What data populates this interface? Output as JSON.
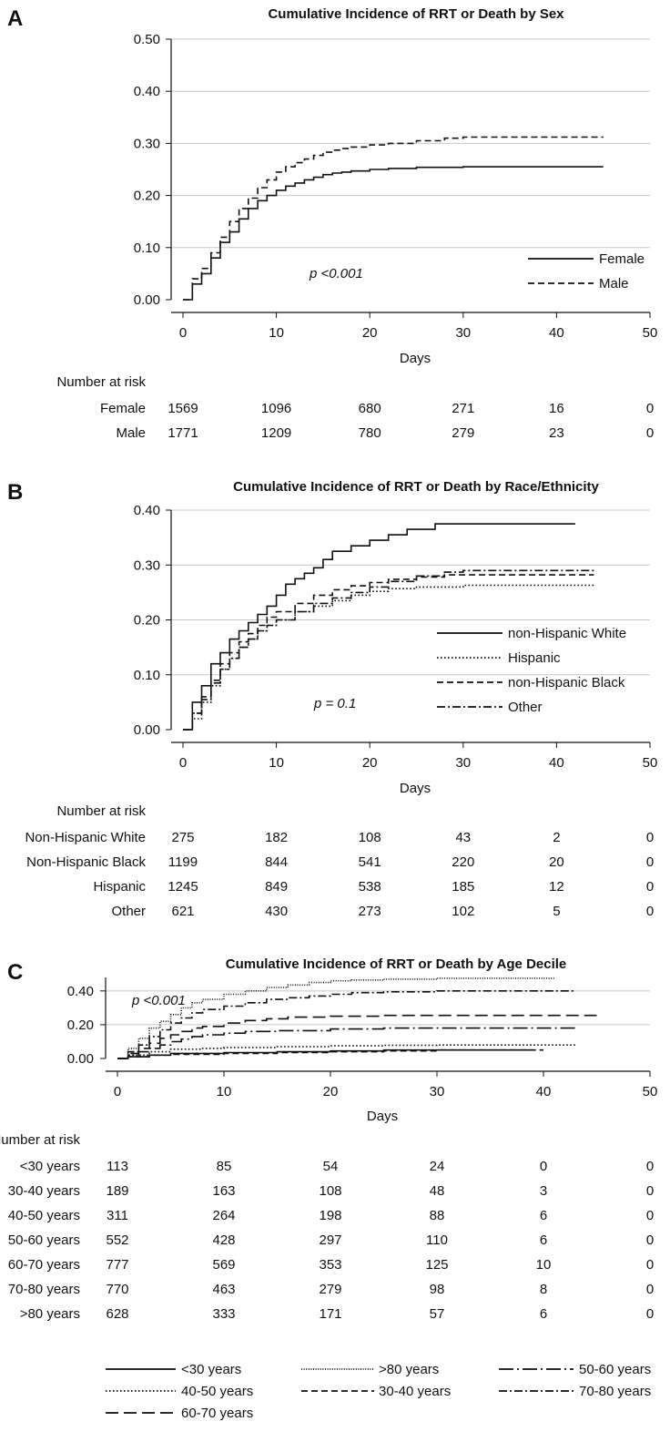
{
  "chart_data": [
    {
      "panel_letter": "A",
      "type": "line",
      "step": true,
      "title": "Cumulative Incidence of RRT or Death by Sex",
      "xlabel": "Days",
      "ylabel": "",
      "xlim": [
        0,
        50
      ],
      "ylim": [
        0,
        0.5
      ],
      "x_ticks": [
        0,
        10,
        20,
        30,
        40,
        50
      ],
      "y_ticks": [
        "0.00",
        "0.10",
        "0.20",
        "0.30",
        "0.40",
        "0.50"
      ],
      "grid": "horizontal",
      "p_value": "p <0.001",
      "legend_position": "bottom-right",
      "series": [
        {
          "name": "Female",
          "dash": "solid",
          "x": [
            1,
            2,
            3,
            4,
            5,
            6,
            7,
            8,
            9,
            10,
            11,
            12,
            13,
            14,
            15,
            16,
            17,
            18,
            20,
            22,
            25,
            30,
            45
          ],
          "y": [
            0.03,
            0.05,
            0.08,
            0.11,
            0.13,
            0.155,
            0.175,
            0.19,
            0.2,
            0.21,
            0.218,
            0.224,
            0.23,
            0.235,
            0.24,
            0.243,
            0.245,
            0.247,
            0.25,
            0.252,
            0.254,
            0.255,
            0.255
          ]
        },
        {
          "name": "Male",
          "dash": "dashed",
          "x": [
            1,
            2,
            3,
            4,
            5,
            6,
            7,
            8,
            9,
            10,
            11,
            12,
            13,
            14,
            15,
            16,
            17,
            18,
            20,
            22,
            25,
            28,
            30,
            45
          ],
          "y": [
            0.04,
            0.06,
            0.09,
            0.12,
            0.15,
            0.175,
            0.195,
            0.215,
            0.23,
            0.245,
            0.255,
            0.263,
            0.27,
            0.277,
            0.283,
            0.287,
            0.29,
            0.293,
            0.297,
            0.3,
            0.305,
            0.31,
            0.312,
            0.312
          ]
        }
      ],
      "risk_table": {
        "header": "Number at risk",
        "columns": [
          0,
          10,
          20,
          30,
          40,
          50
        ],
        "rows": [
          {
            "label": "Female",
            "values": [
              "1569",
              "1096",
              "680",
              "271",
              "16",
              "0"
            ]
          },
          {
            "label": "Male",
            "values": [
              "1771",
              "1209",
              "780",
              "279",
              "23",
              "0"
            ]
          }
        ]
      }
    },
    {
      "panel_letter": "B",
      "type": "line",
      "step": true,
      "title": "Cumulative Incidence of RRT or Death by Race/Ethnicity",
      "xlabel": "Days",
      "ylabel": "",
      "xlim": [
        0,
        50
      ],
      "ylim": [
        0,
        0.4
      ],
      "x_ticks": [
        0,
        10,
        20,
        30,
        40,
        50
      ],
      "y_ticks": [
        "0.00",
        "0.10",
        "0.20",
        "0.30",
        "0.40"
      ],
      "grid": "horizontal",
      "p_value": "p = 0.1",
      "legend_position": "bottom-right",
      "series": [
        {
          "name": "non-Hispanic White",
          "dash": "solid",
          "x": [
            1,
            2,
            3,
            4,
            5,
            6,
            7,
            8,
            9,
            10,
            11,
            12,
            13,
            14,
            15,
            16,
            18,
            20,
            22,
            24,
            27,
            42
          ],
          "y": [
            0.05,
            0.08,
            0.12,
            0.14,
            0.165,
            0.18,
            0.195,
            0.21,
            0.225,
            0.245,
            0.265,
            0.275,
            0.285,
            0.295,
            0.31,
            0.325,
            0.335,
            0.345,
            0.355,
            0.365,
            0.375,
            0.375
          ]
        },
        {
          "name": "Hispanic",
          "dash": "dotted",
          "x": [
            1,
            2,
            3,
            4,
            5,
            6,
            7,
            8,
            9,
            10,
            12,
            14,
            16,
            18,
            20,
            22,
            25,
            30,
            44
          ],
          "y": [
            0.02,
            0.05,
            0.08,
            0.11,
            0.13,
            0.15,
            0.165,
            0.18,
            0.19,
            0.2,
            0.215,
            0.225,
            0.235,
            0.245,
            0.252,
            0.257,
            0.26,
            0.263,
            0.263
          ]
        },
        {
          "name": "non-Hispanic Black",
          "dash": "dashed",
          "x": [
            1,
            2,
            3,
            4,
            5,
            6,
            7,
            8,
            9,
            10,
            12,
            14,
            16,
            18,
            20,
            22,
            25,
            28,
            44
          ],
          "y": [
            0.03,
            0.06,
            0.09,
            0.12,
            0.14,
            0.16,
            0.175,
            0.19,
            0.205,
            0.215,
            0.23,
            0.245,
            0.255,
            0.262,
            0.268,
            0.274,
            0.278,
            0.282,
            0.282
          ]
        },
        {
          "name": "Other",
          "dash": "dashdot",
          "x": [
            1,
            2,
            3,
            4,
            5,
            6,
            7,
            8,
            9,
            10,
            12,
            14,
            16,
            18,
            20,
            22,
            25,
            28,
            30,
            44
          ],
          "y": [
            0.03,
            0.055,
            0.085,
            0.11,
            0.13,
            0.15,
            0.165,
            0.18,
            0.19,
            0.2,
            0.215,
            0.23,
            0.24,
            0.25,
            0.26,
            0.27,
            0.28,
            0.287,
            0.29,
            0.29
          ]
        }
      ],
      "risk_table": {
        "header": "Number at risk",
        "columns": [
          0,
          10,
          20,
          30,
          40,
          50
        ],
        "rows": [
          {
            "label": "Non-Hispanic White",
            "values": [
              "275",
              "182",
              "108",
              "43",
              "2",
              "0"
            ]
          },
          {
            "label": "Non-Hispanic Black",
            "values": [
              "1199",
              "844",
              "541",
              "220",
              "20",
              "0"
            ]
          },
          {
            "label": "Hispanic",
            "values": [
              "1245",
              "849",
              "538",
              "185",
              "12",
              "0"
            ]
          },
          {
            "label": "Other",
            "values": [
              "621",
              "430",
              "273",
              "102",
              "5",
              "0"
            ]
          }
        ]
      }
    },
    {
      "panel_letter": "C",
      "type": "line",
      "step": true,
      "title": "Cumulative Incidence of RRT or Death by Age Decile",
      "xlabel": "Days",
      "ylabel": "",
      "xlim": [
        0,
        50
      ],
      "ylim": [
        0,
        0.48
      ],
      "x_ticks": [
        0,
        10,
        20,
        30,
        40,
        50
      ],
      "y_ticks": [
        "0.00",
        "0.20",
        "0.40"
      ],
      "grid": "horizontal",
      "p_value": "p <0.001",
      "legend_position": "below",
      "series": [
        {
          "name": "<30 years",
          "dash": "solid",
          "x": [
            1,
            3,
            5,
            10,
            15,
            20,
            25,
            39
          ],
          "y": [
            0.01,
            0.02,
            0.03,
            0.035,
            0.04,
            0.045,
            0.05,
            0.05
          ]
        },
        {
          "name": ">80 years",
          "dash": "densedot",
          "x": [
            1,
            2,
            3,
            4,
            5,
            6,
            7,
            8,
            10,
            12,
            14,
            16,
            18,
            20,
            22,
            25,
            30,
            41
          ],
          "y": [
            0.06,
            0.12,
            0.18,
            0.22,
            0.26,
            0.3,
            0.33,
            0.35,
            0.38,
            0.4,
            0.42,
            0.435,
            0.45,
            0.46,
            0.465,
            0.47,
            0.475,
            0.475
          ]
        },
        {
          "name": "50-60 years",
          "dash": "longdashdot",
          "x": [
            1,
            2,
            3,
            4,
            5,
            6,
            7,
            8,
            10,
            12,
            15,
            20,
            25,
            30,
            43
          ],
          "y": [
            0.02,
            0.04,
            0.06,
            0.08,
            0.1,
            0.115,
            0.13,
            0.14,
            0.15,
            0.16,
            0.165,
            0.175,
            0.18,
            0.18,
            0.18
          ]
        },
        {
          "name": "40-50 years",
          "dash": "dotted",
          "x": [
            1,
            3,
            5,
            8,
            10,
            15,
            20,
            25,
            30,
            43
          ],
          "y": [
            0.02,
            0.04,
            0.055,
            0.06,
            0.065,
            0.07,
            0.075,
            0.078,
            0.08,
            0.08
          ]
        },
        {
          "name": "30-40 years",
          "dash": "dashed",
          "x": [
            1,
            3,
            5,
            10,
            15,
            20,
            25,
            30,
            40
          ],
          "y": [
            0.01,
            0.02,
            0.025,
            0.03,
            0.035,
            0.04,
            0.045,
            0.05,
            0.05
          ]
        },
        {
          "name": "70-80 years",
          "dash": "dashdot",
          "x": [
            1,
            2,
            3,
            4,
            5,
            6,
            7,
            8,
            10,
            12,
            14,
            16,
            18,
            20,
            22,
            25,
            30,
            43
          ],
          "y": [
            0.04,
            0.08,
            0.13,
            0.17,
            0.21,
            0.24,
            0.27,
            0.29,
            0.31,
            0.33,
            0.35,
            0.36,
            0.37,
            0.38,
            0.39,
            0.395,
            0.4,
            0.4
          ]
        },
        {
          "name": "60-70 years",
          "dash": "longdash",
          "x": [
            1,
            2,
            3,
            4,
            5,
            6,
            7,
            8,
            10,
            12,
            14,
            16,
            20,
            25,
            30,
            45
          ],
          "y": [
            0.03,
            0.06,
            0.09,
            0.12,
            0.14,
            0.16,
            0.18,
            0.19,
            0.21,
            0.225,
            0.235,
            0.245,
            0.25,
            0.255,
            0.255,
            0.255
          ]
        }
      ],
      "risk_table": {
        "header": "Number at risk",
        "columns": [
          0,
          10,
          20,
          30,
          40,
          50
        ],
        "rows": [
          {
            "label": "<30 years",
            "values": [
              "113",
              "85",
              "54",
              "24",
              "0",
              "0"
            ]
          },
          {
            "label": "30-40 years",
            "values": [
              "189",
              "163",
              "108",
              "48",
              "3",
              "0"
            ]
          },
          {
            "label": "40-50 years",
            "values": [
              "311",
              "264",
              "198",
              "88",
              "6",
              "0"
            ]
          },
          {
            "label": "50-60 years",
            "values": [
              "552",
              "428",
              "297",
              "110",
              "6",
              "0"
            ]
          },
          {
            "label": "60-70 years",
            "values": [
              "777",
              "569",
              "353",
              "125",
              "10",
              "0"
            ]
          },
          {
            "label": "70-80 years",
            "values": [
              "770",
              "463",
              "279",
              "98",
              "8",
              "0"
            ]
          },
          {
            "label": ">80 years",
            "values": [
              "628",
              "333",
              "171",
              "57",
              "6",
              "0"
            ]
          }
        ]
      }
    }
  ]
}
